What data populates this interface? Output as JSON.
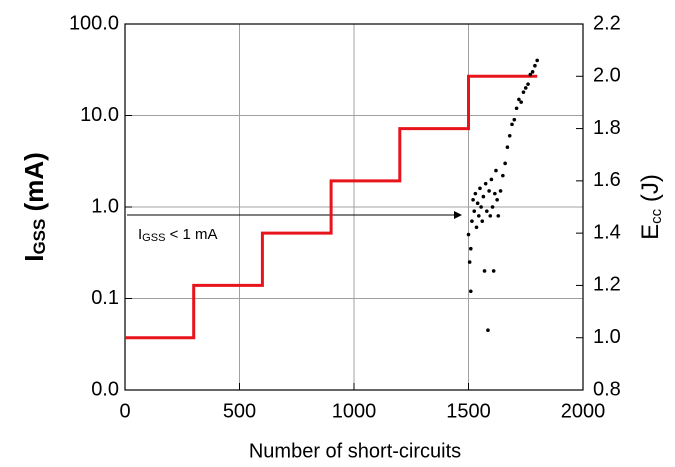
{
  "chart_data": {
    "type": "line",
    "xlabel": "Number of short-circuits",
    "ylabel": [
      "I",
      "GSS",
      " (mA)"
    ],
    "y2label": [
      "E",
      "cc",
      " (J)"
    ],
    "annotation": [
      "I",
      "GSS",
      " < 1 mA"
    ],
    "xlim": [
      0,
      2000
    ],
    "xticks": [
      0,
      500,
      1000,
      1500,
      2000
    ],
    "ylim": [
      0.01,
      100
    ],
    "yscale": "log",
    "yticks": [
      {
        "value": 0.01,
        "label": "0.0"
      },
      {
        "value": 0.1,
        "label": "0.1"
      },
      {
        "value": 1,
        "label": "1.0"
      },
      {
        "value": 10,
        "label": "10.0"
      },
      {
        "value": 100,
        "label": "100.0"
      }
    ],
    "y2lim": [
      0.8,
      2.2
    ],
    "y2ticks": [
      {
        "value": 0.8,
        "label": "0.8"
      },
      {
        "value": 1.0,
        "label": "1.0"
      },
      {
        "value": 1.2,
        "label": "1.2"
      },
      {
        "value": 1.4,
        "label": "1.4"
      },
      {
        "value": 1.6,
        "label": "1.6"
      },
      {
        "value": 1.8,
        "label": "1.8"
      },
      {
        "value": 2.0,
        "label": "2.0"
      },
      {
        "value": 2.2,
        "label": "2.2"
      }
    ],
    "grid": true,
    "series": [
      {
        "type": "line",
        "axis": "y2",
        "color": "#e8141c",
        "x": [
          0,
          300,
          300,
          600,
          600,
          900,
          900,
          1200,
          1200,
          1500,
          1500,
          1800
        ],
        "values": [
          1.0,
          1.0,
          1.2,
          1.2,
          1.4,
          1.4,
          1.6,
          1.6,
          1.8,
          1.8,
          2.0,
          2.0
        ]
      },
      {
        "type": "scatter",
        "axis": "y",
        "color": "#000000",
        "x": [
          1500,
          1505,
          1510,
          1510,
          1515,
          1520,
          1525,
          1530,
          1535,
          1540,
          1545,
          1550,
          1555,
          1560,
          1565,
          1570,
          1575,
          1580,
          1585,
          1590,
          1595,
          1600,
          1605,
          1610,
          1615,
          1620,
          1625,
          1630,
          1640,
          1650,
          1660,
          1670,
          1680,
          1690,
          1700,
          1710,
          1720,
          1730,
          1740,
          1750,
          1760,
          1770,
          1780,
          1790,
          1800
        ],
        "values": [
          0.5,
          0.25,
          0.12,
          0.35,
          0.7,
          1.2,
          0.9,
          1.4,
          0.6,
          1.1,
          0.8,
          1.6,
          1.0,
          0.7,
          1.3,
          0.2,
          1.8,
          0.9,
          0.045,
          1.5,
          0.8,
          2.0,
          1.0,
          0.2,
          1.4,
          2.5,
          1.2,
          0.8,
          1.5,
          2.2,
          3,
          4.5,
          6,
          8,
          9,
          12,
          15,
          14,
          18,
          20,
          22,
          28,
          30,
          35,
          40
        ]
      }
    ]
  }
}
